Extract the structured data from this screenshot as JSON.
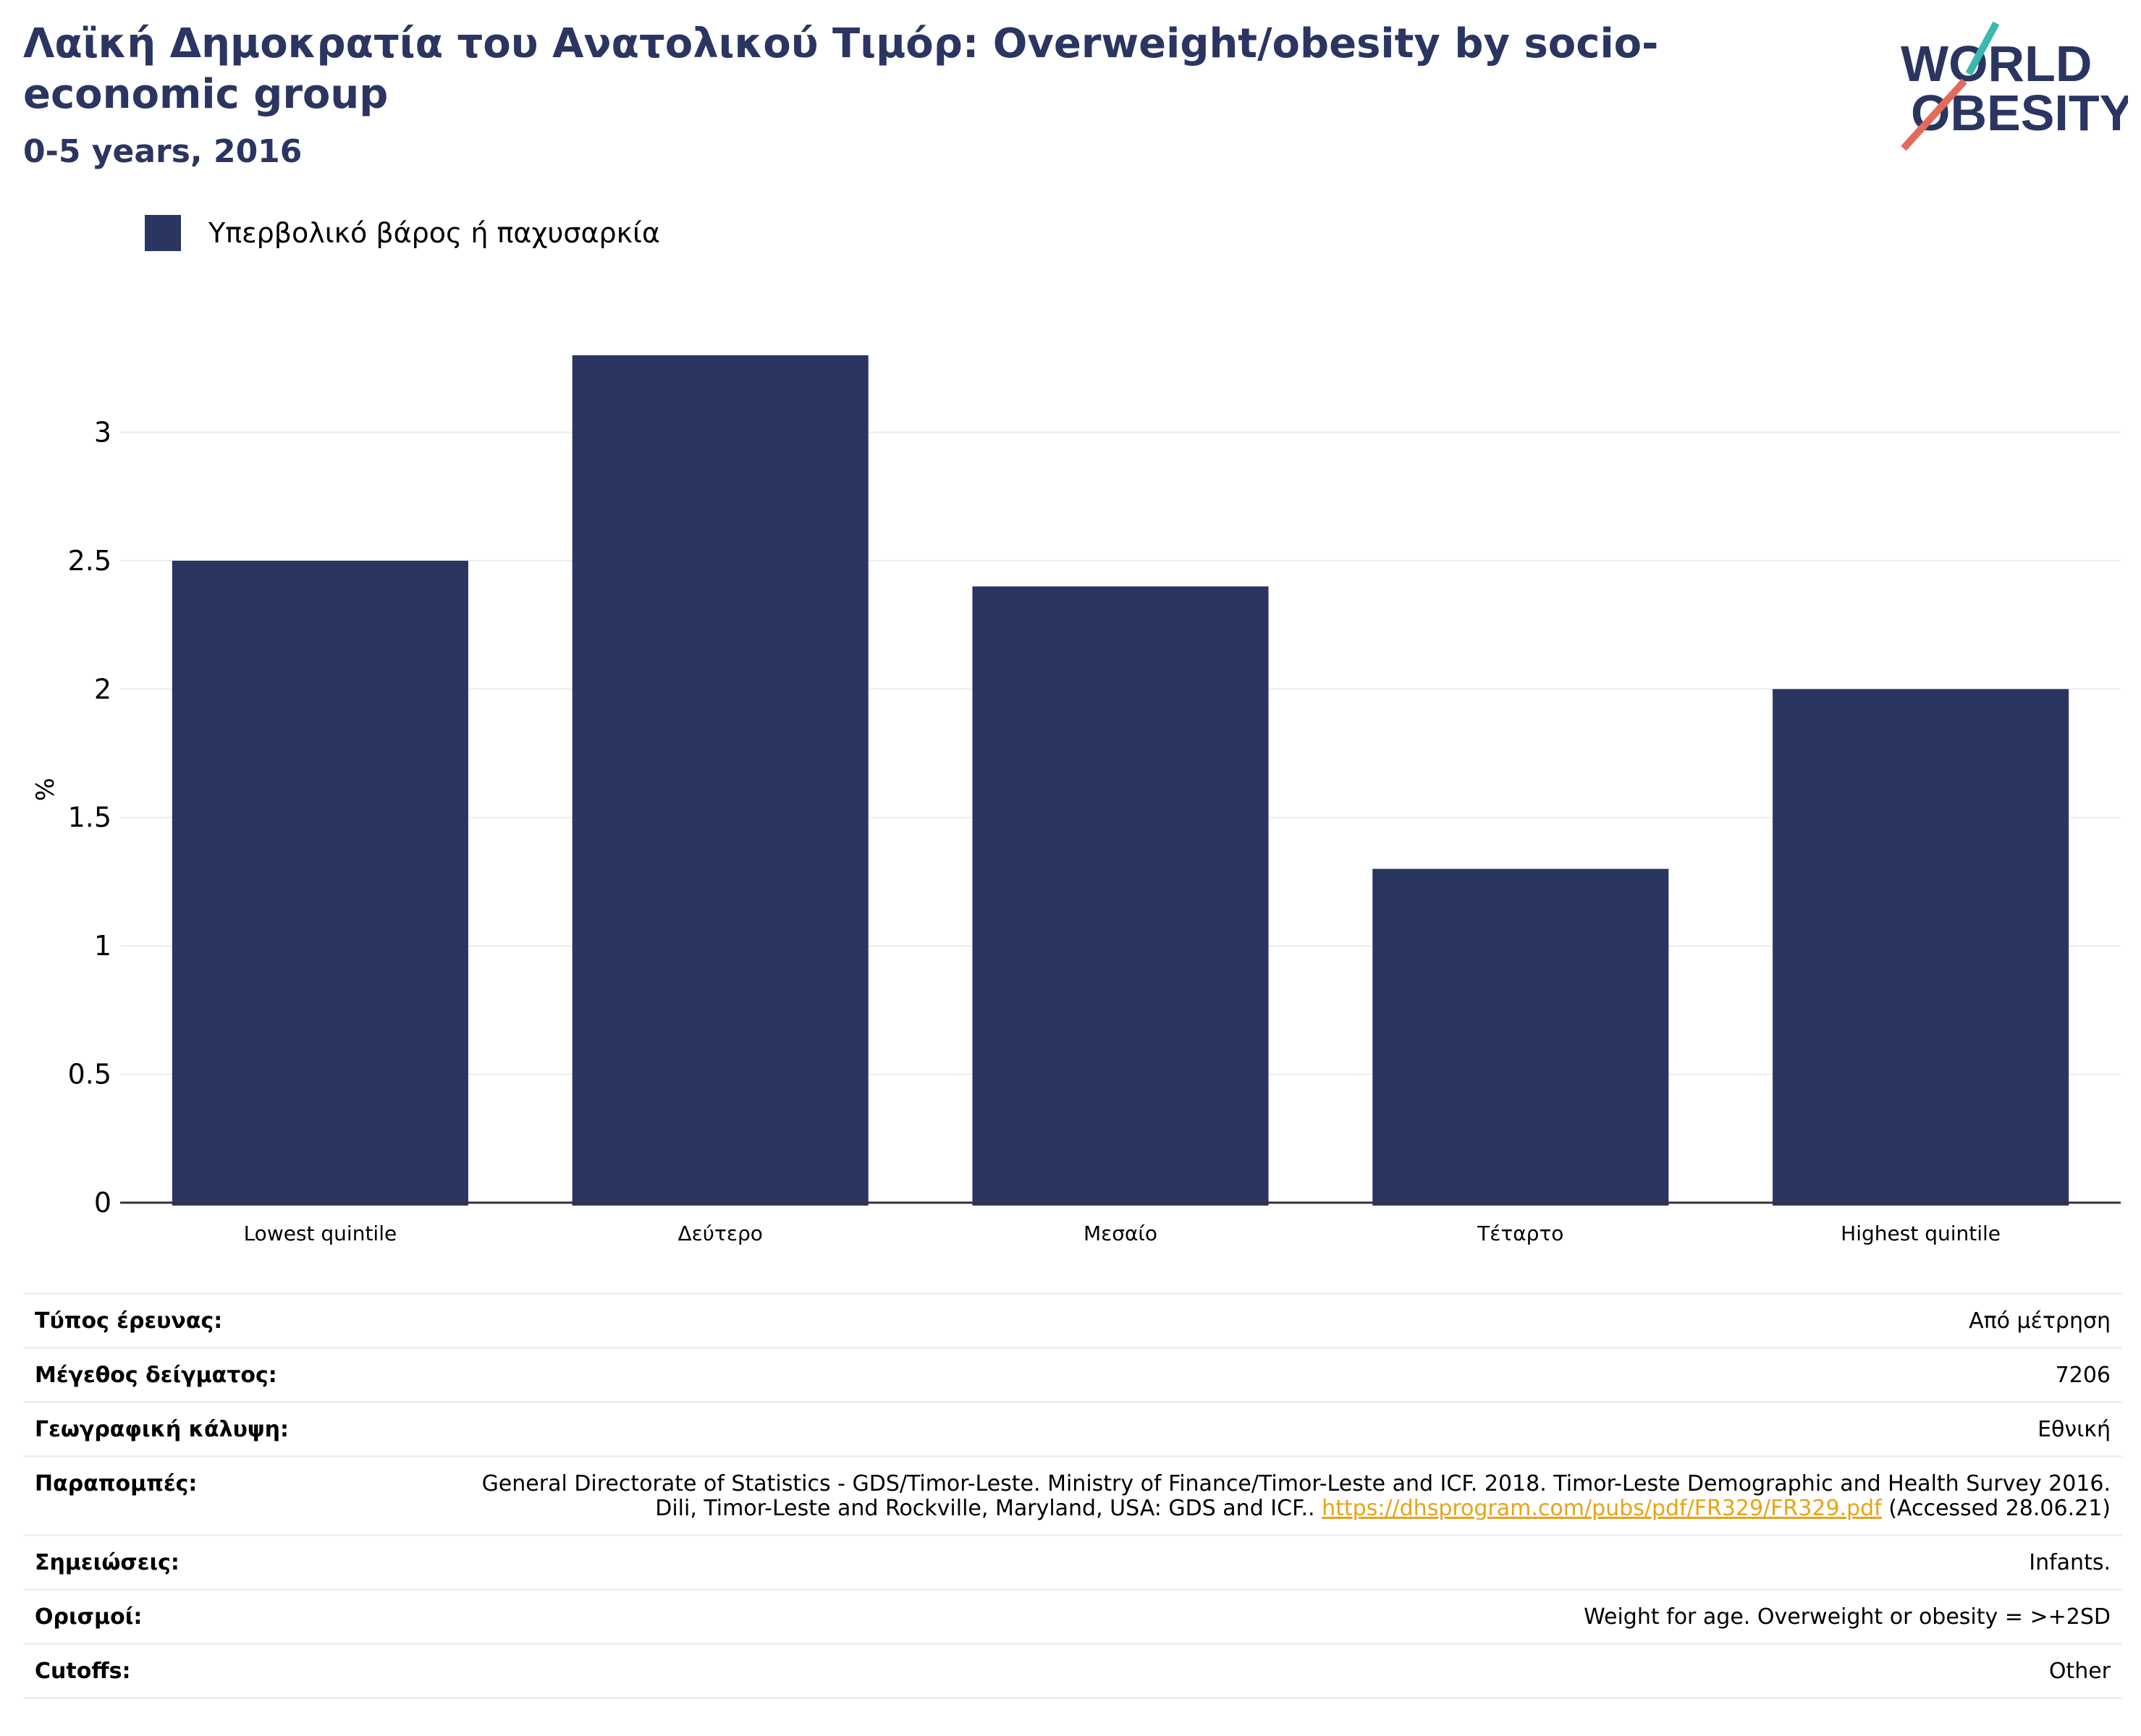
{
  "header": {
    "title": "Λαϊκή Δημοκρατία του Ανατολικού Τιμόρ: Overweight/obesity by socio-economic group",
    "subtitle": "0-5 years, 2016"
  },
  "logo": {
    "line1": "WORLD",
    "line2": "OBESITY"
  },
  "colors": {
    "bar": "#2a3561",
    "title": "#2a3561",
    "grid": "#e9ebf2",
    "axis": "#333333",
    "link": "#e8a317"
  },
  "chart_data": {
    "type": "bar",
    "title": "Λαϊκή Δημοκρατία του Ανατολικού Τιμόρ: Overweight/obesity by socio-economic group",
    "subtitle": "0-5 years, 2016",
    "categories": [
      "Lowest quintile",
      "Δεύτερο",
      "Μεσαίο",
      "Τέταρτο",
      "Highest quintile"
    ],
    "series": [
      {
        "name": "Υπερβολικό βάρος ή παχυσαρκία",
        "values": [
          2.5,
          3.3,
          2.4,
          1.3,
          2.0
        ]
      }
    ],
    "xlabel": "",
    "ylabel": "%",
    "ylim": [
      0,
      3.5
    ],
    "yticks": [
      "0",
      "0.5",
      "1",
      "1.5",
      "2",
      "2.5",
      "3"
    ],
    "grid": true,
    "legend": "top-left"
  },
  "meta": {
    "rows": [
      {
        "key": "Τύπος έρευνας:",
        "value": "Από μέτρηση"
      },
      {
        "key": "Μέγεθος δείγματος:",
        "value": "7206"
      },
      {
        "key": "Γεωγραφική κάλυψη:",
        "value": "Εθνική"
      },
      {
        "key": "Παραπομπές:",
        "value": "General Directorate of Statistics - GDS/Timor-Leste. Ministry of Finance/Timor-Leste and ICF. 2018. Timor-Leste Demographic and Health Survey 2016. Dili, Timor-Leste and Rockville, Maryland, USA: GDS and ICF.. ",
        "link": "https://dhsprogram.com/pubs/pdf/FR329/FR329.pdf",
        "suffix": " (Accessed 28.06.21)"
      },
      {
        "key": "Σημειώσεις:",
        "value": "Infants."
      },
      {
        "key": "Ορισμοί:",
        "value": "Weight for age. Overweight or obesity = >+2SD"
      },
      {
        "key": "Cutoffs:",
        "value": "Other"
      }
    ]
  }
}
